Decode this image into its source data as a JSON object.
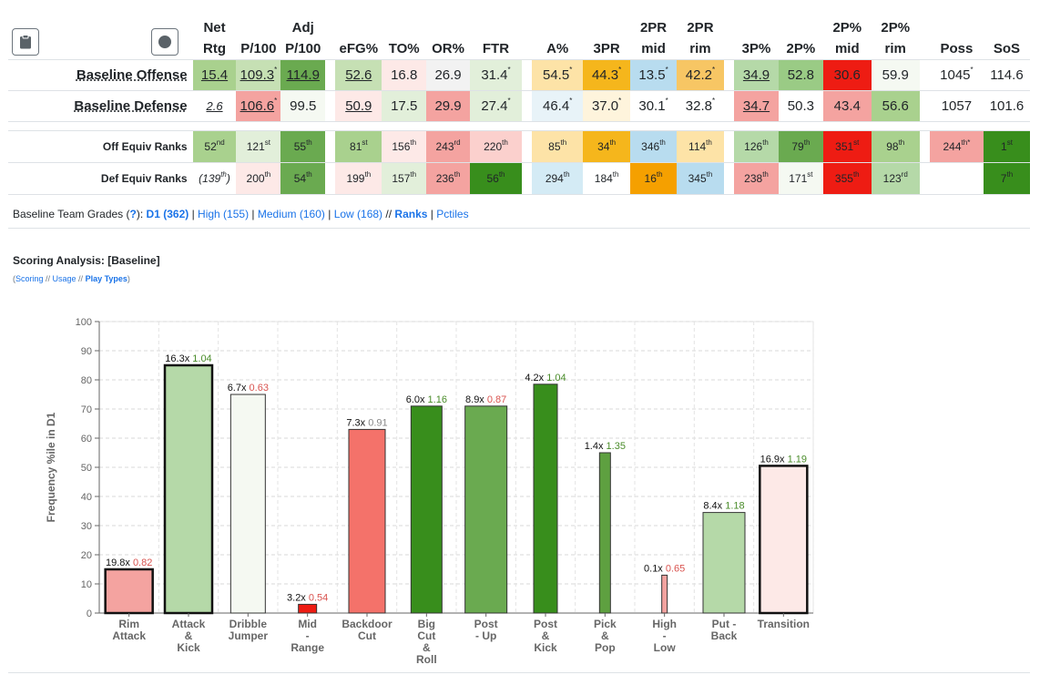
{
  "buttons": {
    "clipboard_icon": "clipboard-icon",
    "record_icon": "circle-icon"
  },
  "headers": [
    {
      "l1": "Net",
      "l2": "Rtg"
    },
    {
      "l1": "",
      "l2": "P/100"
    },
    {
      "l1": "Adj",
      "l2": "P/100"
    },
    {
      "l1": "",
      "l2": "eFG%"
    },
    {
      "l1": "",
      "l2": "TO%"
    },
    {
      "l1": "",
      "l2": "OR%"
    },
    {
      "l1": "",
      "l2": "FTR"
    },
    {
      "l1": "",
      "l2": "A%"
    },
    {
      "l1": "",
      "l2": "3PR"
    },
    {
      "l1": "2PR",
      "l2": "mid"
    },
    {
      "l1": "2PR",
      "l2": "rim"
    },
    {
      "l1": "",
      "l2": "3P%"
    },
    {
      "l1": "",
      "l2": "2P%"
    },
    {
      "l1": "2P%",
      "l2": "mid"
    },
    {
      "l1": "2P%",
      "l2": "rim"
    },
    {
      "l1": "",
      "l2": "Poss"
    },
    {
      "l1": "",
      "l2": "SoS"
    }
  ],
  "rows": {
    "offense": {
      "label": "Baseline Offense",
      "cells": [
        {
          "v": "15.4",
          "s": "",
          "bg": "#a9d18e",
          "u": true
        },
        {
          "v": "109.3",
          "s": "*",
          "bg": "#c6e0b4",
          "u": true
        },
        {
          "v": "114.9",
          "s": "",
          "bg": "#6aaa50",
          "u": true
        },
        {
          "v": "52.6",
          "s": "",
          "bg": "#c6e0b4",
          "u": true
        },
        {
          "v": "16.8",
          "s": "",
          "bg": "#fde9e7",
          "u": false
        },
        {
          "v": "26.9",
          "s": "",
          "bg": "#f2f2f2",
          "u": false
        },
        {
          "v": "31.4",
          "s": "*",
          "bg": "#e2efda",
          "u": false
        },
        {
          "v": "54.5",
          "s": "*",
          "bg": "#fde3a7",
          "u": false
        },
        {
          "v": "44.3",
          "s": "*",
          "bg": "#f5b61c",
          "u": false
        },
        {
          "v": "13.5",
          "s": "*",
          "bg": "#b8dcef",
          "u": false
        },
        {
          "v": "42.2",
          "s": "*",
          "bg": "#f7c664",
          "u": false
        },
        {
          "v": "34.9",
          "s": "",
          "bg": "#b5d9a8",
          "u": true
        },
        {
          "v": "52.8",
          "s": "",
          "bg": "#9acb85",
          "u": false
        },
        {
          "v": "30.6",
          "s": "",
          "bg": "#ee1c13",
          "u": false
        },
        {
          "v": "59.9",
          "s": "",
          "bg": "#f5f9f2",
          "u": false
        },
        {
          "v": "1045",
          "s": "*",
          "bg": "#ffffff",
          "u": false
        },
        {
          "v": "114.6",
          "s": "",
          "bg": "#ffffff",
          "u": false
        }
      ]
    },
    "defense": {
      "label": "Baseline Defense",
      "cells": [
        {
          "v": "2.6",
          "s": "",
          "bg": "#ffffff",
          "u": true,
          "i": true
        },
        {
          "v": "106.6",
          "s": "*",
          "bg": "#f4a3a0",
          "u": true
        },
        {
          "v": "99.5",
          "s": "",
          "bg": "#f5f9f2",
          "u": false
        },
        {
          "v": "50.9",
          "s": "",
          "bg": "#fde9e7",
          "u": true
        },
        {
          "v": "17.5",
          "s": "",
          "bg": "#e2efda",
          "u": false
        },
        {
          "v": "29.9",
          "s": "",
          "bg": "#f4a3a0",
          "u": false
        },
        {
          "v": "27.4",
          "s": "*",
          "bg": "#e2efda",
          "u": false
        },
        {
          "v": "46.4",
          "s": "*",
          "bg": "#e8f3f8",
          "u": false
        },
        {
          "v": "37.0",
          "s": "*",
          "bg": "#fef4dc",
          "u": false
        },
        {
          "v": "30.1",
          "s": "*",
          "bg": "#ffffff",
          "u": false
        },
        {
          "v": "32.8",
          "s": "*",
          "bg": "#ffffff",
          "u": false
        },
        {
          "v": "34.7",
          "s": "",
          "bg": "#f4a3a0",
          "u": true
        },
        {
          "v": "50.3",
          "s": "",
          "bg": "#ffffff",
          "u": false
        },
        {
          "v": "43.4",
          "s": "",
          "bg": "#f4a3a0",
          "u": false
        },
        {
          "v": "56.6",
          "s": "",
          "bg": "#a9d18e",
          "u": false
        },
        {
          "v": "1057",
          "s": "",
          "bg": "#ffffff",
          "u": false
        },
        {
          "v": "101.6",
          "s": "",
          "bg": "#ffffff",
          "u": false
        }
      ]
    },
    "off_ranks": {
      "label": "Off Equiv Ranks",
      "cells": [
        {
          "v": "52",
          "s": "nd",
          "bg": "#a9d18e"
        },
        {
          "v": "121",
          "s": "st",
          "bg": "#e2efda"
        },
        {
          "v": "55",
          "s": "th",
          "bg": "#6aaa50"
        },
        {
          "v": "81",
          "s": "st",
          "bg": "#a9d18e"
        },
        {
          "v": "156",
          "s": "th",
          "bg": "#fde9e7"
        },
        {
          "v": "243",
          "s": "rd",
          "bg": "#f4a3a0"
        },
        {
          "v": "220",
          "s": "th",
          "bg": "#fbd0cd"
        },
        {
          "v": "85",
          "s": "th",
          "bg": "#fde3a7"
        },
        {
          "v": "34",
          "s": "th",
          "bg": "#f5b61c"
        },
        {
          "v": "346",
          "s": "th",
          "bg": "#b8dcef"
        },
        {
          "v": "114",
          "s": "th",
          "bg": "#fde3a7"
        },
        {
          "v": "126",
          "s": "th",
          "bg": "#b5d9a8"
        },
        {
          "v": "79",
          "s": "th",
          "bg": "#6aaa50"
        },
        {
          "v": "351",
          "s": "st",
          "bg": "#ee1c13"
        },
        {
          "v": "98",
          "s": "th",
          "bg": "#a9d18e"
        },
        {
          "v": "244",
          "s": "th*",
          "bg": "#f4a3a0"
        },
        {
          "v": "1",
          "s": "st",
          "bg": "#388e1c"
        }
      ]
    },
    "def_ranks": {
      "label": "Def Equiv Ranks",
      "cells": [
        {
          "v": "(139",
          "s": "th",
          "post": ")",
          "bg": "#ffffff",
          "i": true
        },
        {
          "v": "200",
          "s": "th",
          "bg": "#fde9e7"
        },
        {
          "v": "54",
          "s": "th",
          "bg": "#6aaa50"
        },
        {
          "v": "199",
          "s": "th",
          "bg": "#fde9e7"
        },
        {
          "v": "157",
          "s": "th",
          "bg": "#e2efda"
        },
        {
          "v": "236",
          "s": "th",
          "bg": "#f4a3a0"
        },
        {
          "v": "56",
          "s": "th",
          "bg": "#388e1c"
        },
        {
          "v": "294",
          "s": "th",
          "bg": "#d4ebf5"
        },
        {
          "v": "184",
          "s": "th",
          "bg": "#ffffff"
        },
        {
          "v": "16",
          "s": "th",
          "bg": "#f5a000"
        },
        {
          "v": "345",
          "s": "th",
          "bg": "#b8dcef"
        },
        {
          "v": "238",
          "s": "th",
          "bg": "#f4a3a0"
        },
        {
          "v": "171",
          "s": "st",
          "bg": "#f5f9f2"
        },
        {
          "v": "355",
          "s": "th",
          "bg": "#ee1c13"
        },
        {
          "v": "123",
          "s": "rd",
          "bg": "#b5d9a8"
        },
        {
          "v": "",
          "s": "",
          "bg": "#ffffff"
        },
        {
          "v": "7",
          "s": "th",
          "bg": "#388e1c"
        }
      ]
    }
  },
  "grades": {
    "prefix": "Baseline Team Grades (",
    "q": "?",
    "suffix": "):",
    "d1": "D1 (362)",
    "high": "High (155)",
    "medium": "Medium (160)",
    "low": "Low (168)",
    "sep": "//",
    "ranks": "Ranks",
    "pctiles": "Pctiles"
  },
  "scoring": {
    "title": "Scoring Analysis: [Baseline]",
    "link_open": "(",
    "link_scoring": "Scoring",
    "link_sep1": " // ",
    "link_usage": "Usage",
    "link_sep2": " // ",
    "link_playtypes": "Play Types",
    "link_close": ")"
  },
  "chart_data": {
    "type": "bar",
    "ylabel": "Frequency %ile in D1",
    "ylim": [
      0,
      100
    ],
    "yticks": [
      0,
      10,
      20,
      30,
      40,
      50,
      60,
      70,
      80,
      90,
      100
    ],
    "grid": true,
    "categories": [
      {
        "lines": [
          "Rim",
          "Attack"
        ],
        "value": 15,
        "freq": "19.8x",
        "eff": "0.82",
        "eff_color": "#d9534f",
        "fill": "#f4a3a0",
        "bold": true
      },
      {
        "lines": [
          "Attack",
          "&",
          "Kick"
        ],
        "value": 85,
        "freq": "16.3x",
        "eff": "1.04",
        "eff_color": "#4a8c2a",
        "fill": "#b5d9a8",
        "bold": true
      },
      {
        "lines": [
          "Dribble",
          "Jumper"
        ],
        "value": 75,
        "freq": "6.7x",
        "eff": "0.63",
        "eff_color": "#d9534f",
        "fill": "#f5f9f2",
        "bold": false
      },
      {
        "lines": [
          "Mid",
          "-",
          "Range"
        ],
        "value": 3,
        "freq": "3.2x",
        "eff": "0.54",
        "eff_color": "#d9534f",
        "fill": "#ee1c13",
        "bold": false
      },
      {
        "lines": [
          "Backdoor",
          "Cut"
        ],
        "value": 63,
        "freq": "7.3x",
        "eff": "0.91",
        "eff_color": "#888888",
        "fill": "#f4726a",
        "bold": false
      },
      {
        "lines": [
          "Big",
          "Cut",
          "&",
          "Roll"
        ],
        "value": 71,
        "freq": "6.0x",
        "eff": "1.16",
        "eff_color": "#4a8c2a",
        "fill": "#388e1c",
        "bold": false
      },
      {
        "lines": [
          "Post",
          "- Up"
        ],
        "value": 71,
        "freq": "8.9x",
        "eff": "0.87",
        "eff_color": "#d9534f",
        "fill": "#6aaa50",
        "bold": false
      },
      {
        "lines": [
          "Post",
          "&",
          "Kick"
        ],
        "value": 78.5,
        "freq": "4.2x",
        "eff": "1.04",
        "eff_color": "#4a8c2a",
        "fill": "#388e1c",
        "bold": false
      },
      {
        "lines": [
          "Pick",
          "&",
          "Pop"
        ],
        "value": 55,
        "freq": "1.4x",
        "eff": "1.35",
        "eff_color": "#4a8c2a",
        "fill": "#5ea040",
        "bold": false
      },
      {
        "lines": [
          "High",
          "-",
          "Low"
        ],
        "value": 13,
        "freq": "0.1x",
        "eff": "0.65",
        "eff_color": "#d9534f",
        "fill": "#f4a3a0",
        "bold": false
      },
      {
        "lines": [
          "Put -",
          "Back"
        ],
        "value": 34.5,
        "freq": "8.4x",
        "eff": "1.18",
        "eff_color": "#4a8c2a",
        "fill": "#b5d9a8",
        "bold": false
      },
      {
        "lines": [
          "Transition"
        ],
        "value": 50.5,
        "freq": "16.9x",
        "eff": "1.19",
        "eff_color": "#4a8c2a",
        "fill": "#fde9e7",
        "bold": true
      }
    ]
  }
}
